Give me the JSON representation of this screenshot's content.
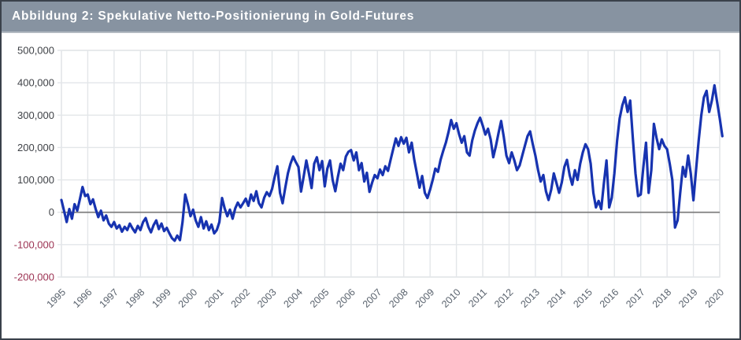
{
  "header": {
    "title": "Abbildung 2: Spekulative Netto-Positionierung in Gold-Futures"
  },
  "colors": {
    "header_bg": "#8793A1",
    "header_text": "#FFFFFF",
    "outer_border": "#3A414B",
    "plot_bg": "#FFFFFF",
    "grid": "#E3E6E9",
    "zero_line": "#7F7F7F",
    "line": "#1733B0",
    "y_tick_positive": "#3F4247",
    "y_tick_negative": "#9C3353",
    "x_tick": "#59626D"
  },
  "chart_data": {
    "type": "line",
    "title": "Abbildung 2: Spekulative Netto-Positionierung in Gold-Futures",
    "xlabel": "",
    "ylabel": "",
    "legend": "none",
    "grid": "on",
    "x_unit": "year",
    "x_start": 1995.0,
    "x_step": 0.1,
    "values_unit": "thousand contracts (net speculative futures position)",
    "ylim_k": [
      -200,
      500
    ],
    "x_ticks": [
      1995,
      1996,
      1997,
      1998,
      1999,
      2000,
      2001,
      2002,
      2003,
      2004,
      2005,
      2006,
      2007,
      2008,
      2009,
      2010,
      2011,
      2012,
      2013,
      2014,
      2015,
      2016,
      2017,
      2018,
      2019,
      2020
    ],
    "y_ticks": [
      {
        "k": 500,
        "label": "500,000"
      },
      {
        "k": 400,
        "label": "400,000"
      },
      {
        "k": 300,
        "label": "300,000"
      },
      {
        "k": 200,
        "label": "200,000"
      },
      {
        "k": 100,
        "label": "100,000"
      },
      {
        "k": 0,
        "label": "0"
      },
      {
        "k": -100,
        "label": "-100,000"
      },
      {
        "k": -200,
        "label": "-200,000"
      }
    ],
    "series": [
      {
        "name": "Spekulative Netto-Positionierung in Gold-Futures",
        "color": "#1733B0",
        "values_k": [
          38,
          5,
          -30,
          10,
          -20,
          25,
          5,
          40,
          78,
          50,
          55,
          25,
          40,
          10,
          -15,
          5,
          -25,
          -10,
          -35,
          -45,
          -30,
          -50,
          -40,
          -60,
          -45,
          -55,
          -35,
          -50,
          -62,
          -42,
          -55,
          -30,
          -18,
          -45,
          -62,
          -40,
          -25,
          -52,
          -35,
          -58,
          -48,
          -65,
          -80,
          -88,
          -72,
          -86,
          -30,
          55,
          25,
          -12,
          8,
          -25,
          -45,
          -15,
          -50,
          -28,
          -55,
          -38,
          -65,
          -55,
          -30,
          44,
          12,
          -12,
          8,
          -20,
          12,
          30,
          15,
          28,
          42,
          20,
          55,
          35,
          65,
          28,
          15,
          45,
          62,
          50,
          72,
          110,
          142,
          60,
          28,
          75,
          120,
          150,
          172,
          155,
          140,
          64,
          110,
          160,
          120,
          75,
          150,
          170,
          130,
          158,
          80,
          135,
          160,
          100,
          65,
          110,
          150,
          130,
          172,
          187,
          192,
          160,
          185,
          130,
          152,
          95,
          122,
          63,
          92,
          115,
          105,
          132,
          115,
          142,
          128,
          162,
          195,
          228,
          205,
          232,
          212,
          230,
          185,
          215,
          162,
          120,
          76,
          112,
          60,
          44,
          70,
          100,
          135,
          125,
          162,
          190,
          215,
          248,
          285,
          258,
          275,
          242,
          215,
          235,
          185,
          175,
          222,
          252,
          275,
          292,
          268,
          240,
          258,
          225,
          170,
          205,
          245,
          282,
          232,
          175,
          152,
          185,
          160,
          130,
          145,
          175,
          205,
          235,
          250,
          210,
          175,
          130,
          95,
          115,
          65,
          38,
          70,
          120,
          90,
          60,
          92,
          140,
          162,
          115,
          85,
          130,
          100,
          150,
          185,
          210,
          195,
          150,
          60,
          15,
          35,
          10,
          90,
          160,
          15,
          45,
          120,
          220,
          290,
          330,
          355,
          310,
          345,
          230,
          120,
          50,
          55,
          140,
          215,
          60,
          130,
          273,
          230,
          195,
          225,
          205,
          195,
          150,
          100,
          -47,
          -25,
          60,
          140,
          110,
          175,
          120,
          37,
          130,
          220,
          300,
          355,
          375,
          310,
          345,
          392,
          340,
          290,
          235
        ]
      }
    ]
  }
}
